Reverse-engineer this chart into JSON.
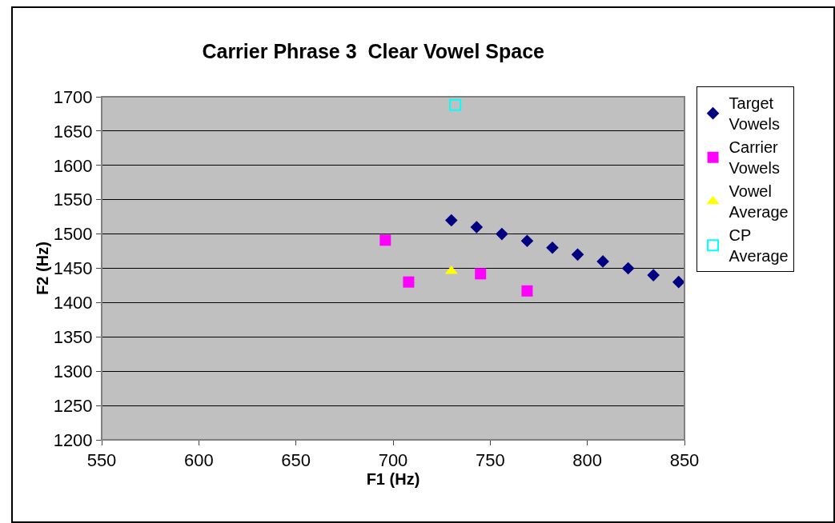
{
  "chart_data": {
    "type": "scatter",
    "title": "Carrier Phrase 3  Clear Vowel Space",
    "xlabel": "F1 (Hz)",
    "ylabel": "F2 (Hz)",
    "xlim": [
      550,
      850
    ],
    "xticks": [
      550,
      600,
      650,
      700,
      750,
      800,
      850
    ],
    "ylim": [
      1200,
      1700
    ],
    "yticks": [
      1200,
      1250,
      1300,
      1350,
      1400,
      1450,
      1500,
      1550,
      1600,
      1650,
      1700
    ],
    "grid": "y",
    "legend": "right",
    "series": [
      {
        "name": "Target Vowels",
        "color": "#000080",
        "marker": "diamond",
        "x": [
          730,
          743,
          756,
          769,
          782,
          795,
          808,
          821,
          834,
          847
        ],
        "values": [
          1520,
          1510,
          1500,
          1490,
          1480,
          1470,
          1460,
          1450,
          1440,
          1430
        ]
      },
      {
        "name": "Carrier Vowels",
        "color": "#ff00ff",
        "marker": "square",
        "x": [
          696,
          708,
          745,
          769
        ],
        "values": [
          1491,
          1430,
          1442,
          1417
        ]
      },
      {
        "name": "Vowel Average",
        "color": "#ffff00",
        "marker": "triangle",
        "x": [
          730
        ],
        "values": [
          1446
        ]
      },
      {
        "name": "CP Average",
        "color": "#00ffff",
        "marker": "square-open",
        "x": [
          732
        ],
        "values": [
          1688
        ]
      }
    ]
  }
}
